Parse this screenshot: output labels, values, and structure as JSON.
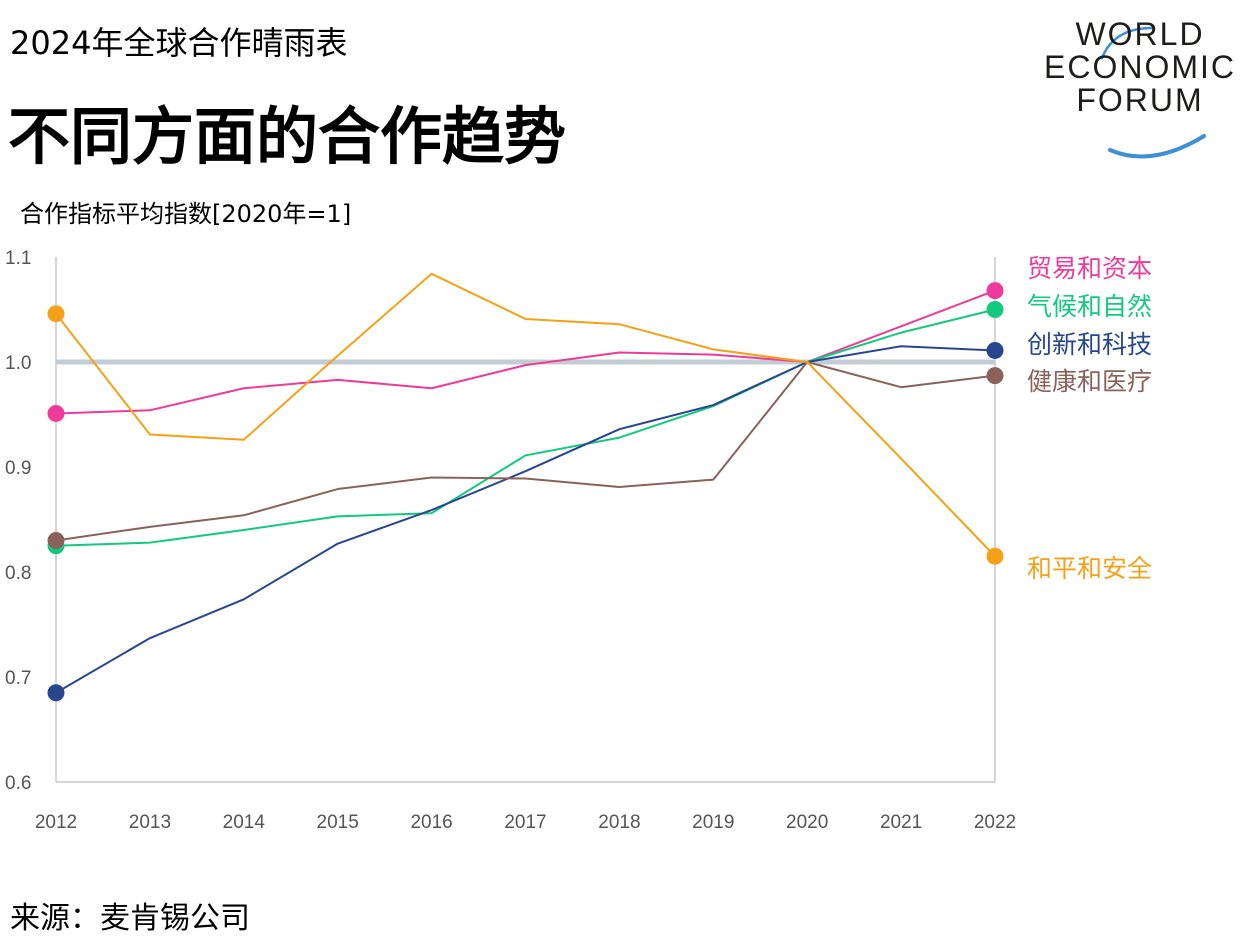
{
  "header": {
    "supertitle": "2024年全球合作晴雨表",
    "title": "不同方面的合作趋势"
  },
  "logo": {
    "lines": [
      "WORLD",
      "ECONOMIC",
      "FORUM"
    ],
    "arc_color": "#3d8fd6"
  },
  "footer": {
    "source": "来源：麦肯锡公司"
  },
  "chart_data": {
    "type": "line",
    "title": "",
    "ylabel": "合作指标平均指数[2020年=1]",
    "xlabel": "",
    "x": [
      "2012",
      "2013",
      "2014",
      "2015",
      "2016",
      "2017",
      "2018",
      "2019",
      "2020",
      "2021",
      "2022"
    ],
    "ylim": [
      0.6,
      1.1
    ],
    "yticks": [
      "0.6",
      "0.7",
      "0.8",
      "0.9",
      "1.0",
      "1.1"
    ],
    "reference_line": {
      "y": 1.0,
      "color": "#c3ccd3"
    },
    "grid": false,
    "legend": "right, labels beside line ends",
    "series": [
      {
        "name": "贸易和资本",
        "color": "#ee3a9a",
        "values": [
          0.951,
          0.954,
          0.975,
          0.983,
          0.975,
          0.997,
          1.009,
          1.007,
          1.0,
          1.034,
          1.068
        ]
      },
      {
        "name": "气候和自然",
        "color": "#13c97e",
        "values": [
          0.825,
          0.828,
          0.84,
          0.853,
          0.856,
          0.911,
          0.928,
          0.958,
          1.0,
          1.028,
          1.05
        ]
      },
      {
        "name": "创新和科技",
        "color": "#284690",
        "values": [
          0.685,
          0.737,
          0.774,
          0.827,
          0.859,
          0.896,
          0.936,
          0.959,
          1.0,
          1.015,
          1.011
        ]
      },
      {
        "name": "健康和医疗",
        "color": "#8a6259",
        "values": [
          0.83,
          0.843,
          0.854,
          0.879,
          0.89,
          0.889,
          0.881,
          0.888,
          1.0,
          0.976,
          0.987
        ]
      },
      {
        "name": "和平和安全",
        "color": "#f5a118",
        "values": [
          1.046,
          0.931,
          0.926,
          1.006,
          1.084,
          1.041,
          1.036,
          1.012,
          1.0,
          0.908,
          0.815
        ]
      }
    ],
    "markers": "first and last points"
  }
}
